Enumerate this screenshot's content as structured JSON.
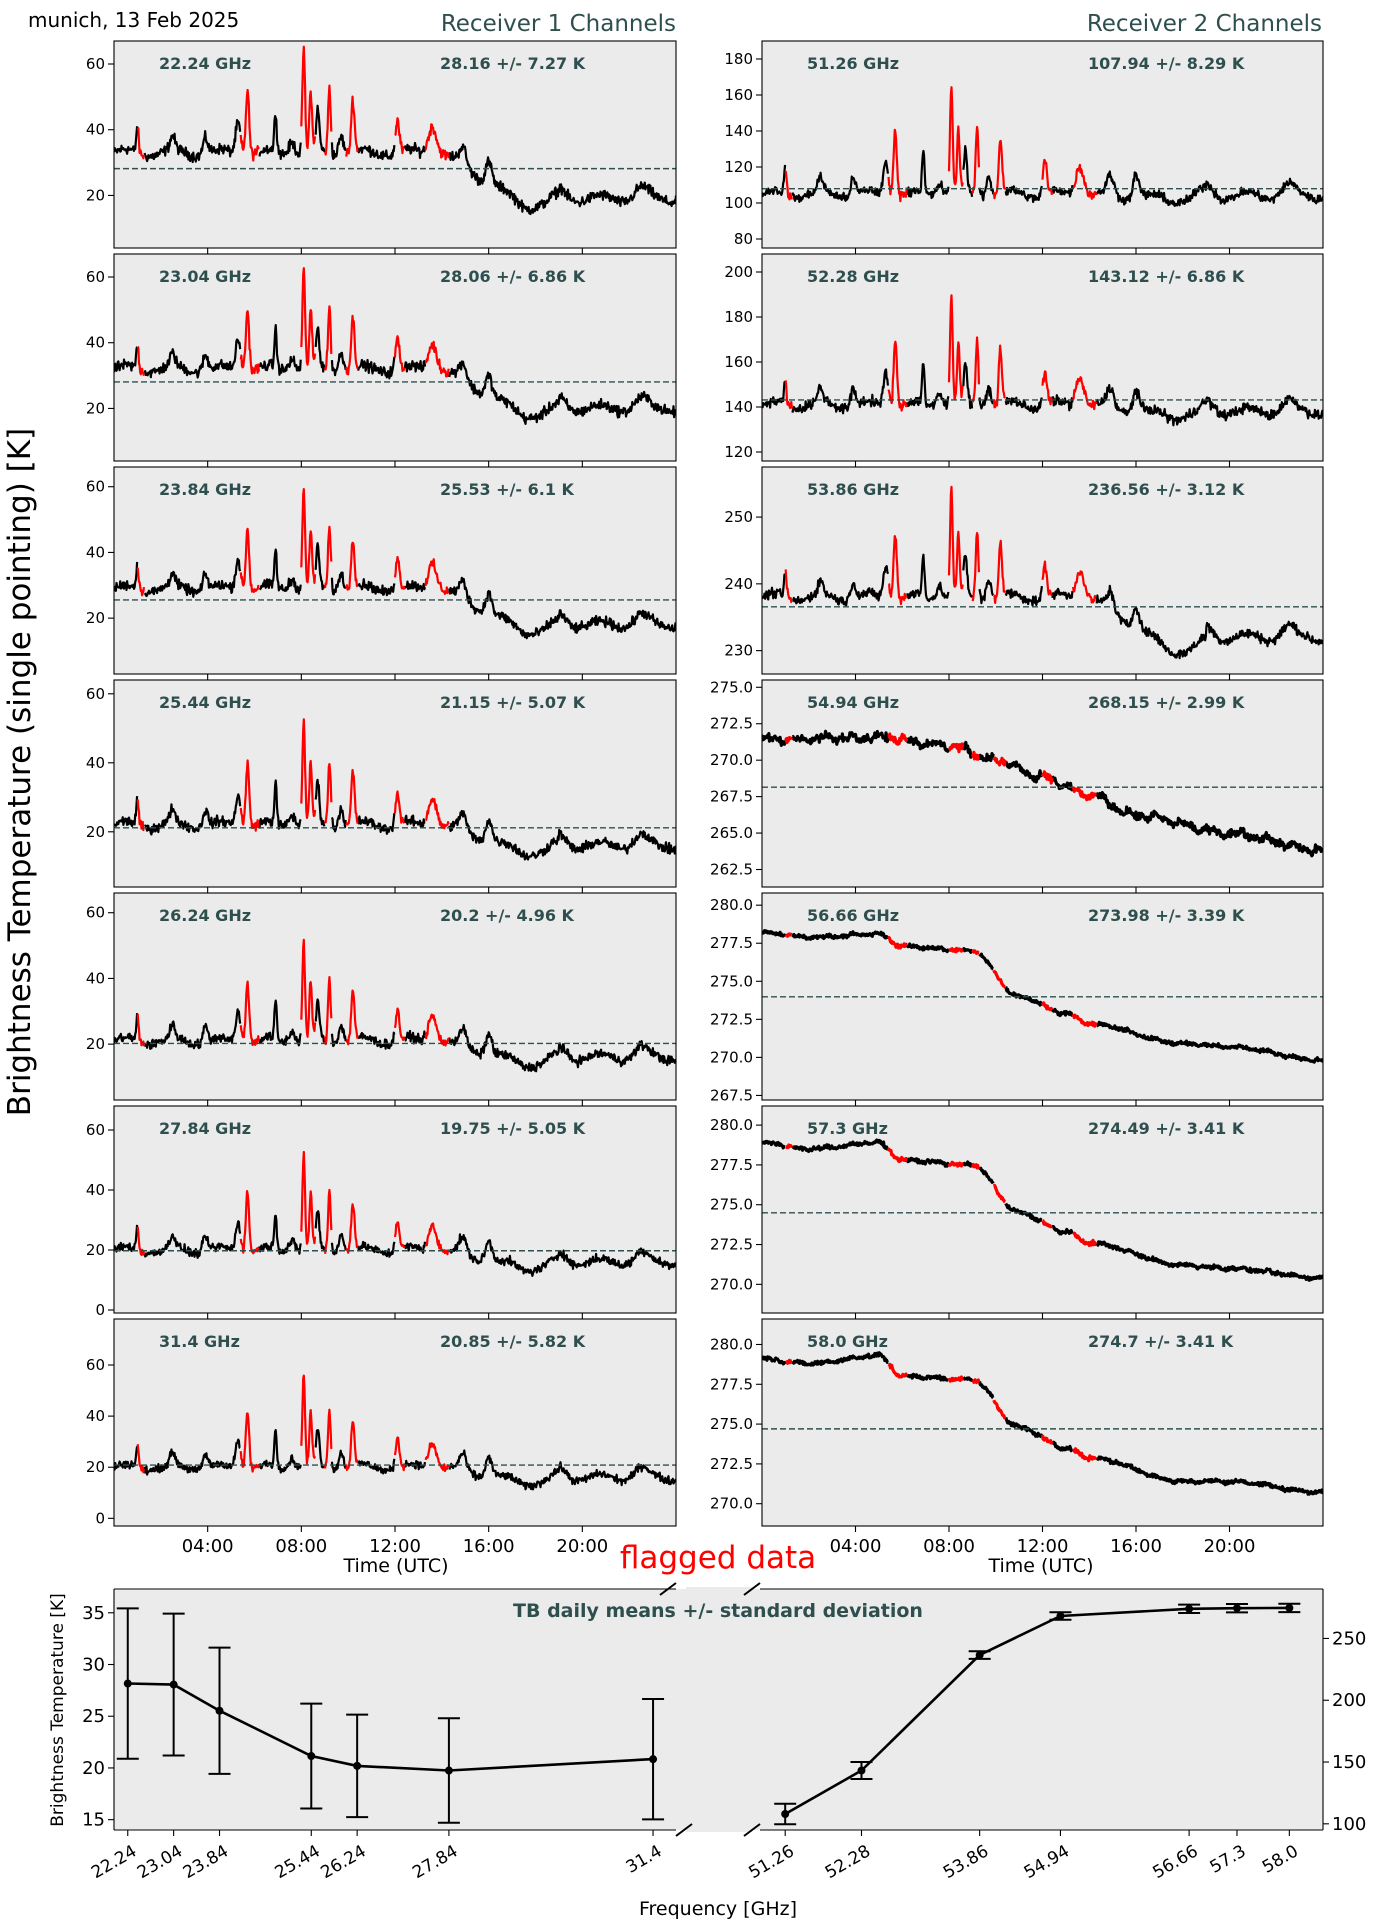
{
  "header": {
    "site_date": "munich, 13 Feb 2025",
    "receiver1_title": "Receiver 1 Channels",
    "receiver2_title": "Receiver 2 Channels"
  },
  "labels": {
    "ylabel_main": "Brightness Temperature (single pointing) [K]",
    "xlabel_time_left": "Time (UTC)",
    "xlabel_time_right": "Time (UTC)",
    "flagged": "flagged data",
    "means_title": "TB daily means +/- standard deviation",
    "summary_ylabel": "Brightness Temperature [K]",
    "summary_xlabel": "Frequency [GHz]"
  },
  "colors": {
    "panel_bg": "#ebebeb",
    "good": "#000000",
    "flagged": "#ff0000",
    "mean_line": "#2f4f4f",
    "text_accent": "#2f4f4f"
  },
  "time_ticks": [
    "04:00",
    "08:00",
    "12:00",
    "16:00",
    "20:00"
  ],
  "time_tick_hours": [
    4,
    8,
    12,
    16,
    20
  ],
  "flag_intervals_hours": [
    [
      1.0,
      1.3
    ],
    [
      5.4,
      6.2
    ],
    [
      8.0,
      8.6
    ],
    [
      9.0,
      9.3
    ],
    [
      9.9,
      10.4
    ],
    [
      12.0,
      12.4
    ],
    [
      13.3,
      14.3
    ]
  ],
  "chart_data": [
    {
      "type": "line",
      "panel": "r1-1",
      "freq_label": "22.24 GHz",
      "stat_label": "28.16 +/- 7.27 K",
      "mean": 28.16,
      "xlim": [
        0,
        24
      ],
      "ylim": [
        4,
        67
      ],
      "yticks": [
        20,
        40,
        60
      ],
      "ytick_labels": [
        "20",
        "40",
        "60"
      ],
      "profile": {
        "base": 33,
        "late": 19,
        "spike": 1.0,
        "noise": 1.6
      }
    },
    {
      "type": "line",
      "panel": "r1-2",
      "freq_label": "23.04 GHz",
      "stat_label": "28.06 +/- 6.86 K",
      "mean": 28.06,
      "xlim": [
        0,
        24
      ],
      "ylim": [
        4,
        67
      ],
      "yticks": [
        20,
        40,
        60
      ],
      "ytick_labels": [
        "20",
        "40",
        "60"
      ],
      "profile": {
        "base": 32,
        "late": 20,
        "spike": 0.95,
        "noise": 1.6
      }
    },
    {
      "type": "line",
      "panel": "r1-3",
      "freq_label": "23.84 GHz",
      "stat_label": "25.53 +/- 6.1 K",
      "mean": 25.53,
      "xlim": [
        0,
        24
      ],
      "ylim": [
        3,
        66
      ],
      "yticks": [
        20,
        40,
        60
      ],
      "ytick_labels": [
        "20",
        "40",
        "60"
      ],
      "profile": {
        "base": 29,
        "late": 18,
        "spike": 0.95,
        "noise": 1.5
      }
    },
    {
      "type": "line",
      "panel": "r1-4",
      "freq_label": "25.44 GHz",
      "stat_label": "21.15 +/- 5.07 K",
      "mean": 21.15,
      "xlim": [
        0,
        24
      ],
      "ylim": [
        4,
        64
      ],
      "yticks": [
        20,
        40,
        60
      ],
      "ytick_labels": [
        "20",
        "40",
        "60"
      ],
      "profile": {
        "base": 22,
        "late": 16,
        "spike": 0.95,
        "noise": 1.4
      }
    },
    {
      "type": "line",
      "panel": "r1-5",
      "freq_label": "26.24 GHz",
      "stat_label": "20.2 +/- 4.96 K",
      "mean": 20.2,
      "xlim": [
        0,
        24
      ],
      "ylim": [
        3,
        66
      ],
      "yticks": [
        20,
        40,
        60
      ],
      "ytick_labels": [
        "20",
        "40",
        "60"
      ],
      "profile": {
        "base": 21,
        "late": 16,
        "spike": 0.95,
        "noise": 1.4
      }
    },
    {
      "type": "line",
      "panel": "r1-6",
      "freq_label": "27.84 GHz",
      "stat_label": "19.75 +/- 5.05 K",
      "mean": 19.75,
      "xlim": [
        0,
        24
      ],
      "ylim": [
        -1,
        68
      ],
      "yticks": [
        0,
        20,
        40,
        60
      ],
      "ytick_labels": [
        "0",
        "20",
        "40",
        "60"
      ],
      "profile": {
        "base": 20,
        "late": 16,
        "spike": 1.0,
        "noise": 1.4
      }
    },
    {
      "type": "line",
      "panel": "r1-7",
      "freq_label": "31.4 GHz",
      "stat_label": "20.85 +/- 5.82 K",
      "mean": 20.85,
      "xlim": [
        0,
        24
      ],
      "ylim": [
        -3,
        78
      ],
      "yticks": [
        0,
        20,
        40,
        60
      ],
      "ytick_labels": [
        "0",
        "20",
        "40",
        "60"
      ],
      "profile": {
        "base": 20,
        "late": 16,
        "spike": 1.15,
        "noise": 1.5
      }
    },
    {
      "type": "line",
      "panel": "r2-1",
      "freq_label": "51.26 GHz",
      "stat_label": "107.94 +/- 8.29 K",
      "mean": 107.94,
      "xlim": [
        0,
        24
      ],
      "ylim": [
        75,
        190
      ],
      "yticks": [
        80,
        100,
        120,
        140,
        160,
        180
      ],
      "ytick_labels": [
        "80",
        "100",
        "120",
        "140",
        "160",
        "180"
      ],
      "profile": {
        "base": 105,
        "late": 104,
        "spike": 1.9,
        "noise": 2.5
      }
    },
    {
      "type": "line",
      "panel": "r2-2",
      "freq_label": "52.28 GHz",
      "stat_label": "143.12 +/- 6.86 K",
      "mean": 143.12,
      "xlim": [
        0,
        24
      ],
      "ylim": [
        116,
        208
      ],
      "yticks": [
        120,
        140,
        160,
        180,
        200
      ],
      "ytick_labels": [
        "120",
        "140",
        "160",
        "180",
        "200"
      ],
      "profile": {
        "base": 141,
        "late": 138,
        "spike": 1.5,
        "noise": 2.2
      }
    },
    {
      "type": "line",
      "panel": "r2-3",
      "freq_label": "53.86 GHz",
      "stat_label": "236.56 +/- 3.12 K",
      "mean": 236.56,
      "xlim": [
        0,
        24
      ],
      "ylim": [
        226.5,
        257.5
      ],
      "yticks": [
        230,
        240,
        250
      ],
      "ytick_labels": [
        "230",
        "240",
        "250"
      ],
      "profile": {
        "base": 238,
        "late": 232,
        "spike": 0.5,
        "noise": 0.7
      }
    },
    {
      "type": "line",
      "panel": "r2-4",
      "freq_label": "54.94 GHz",
      "stat_label": "268.15 +/- 2.99 K",
      "mean": 268.15,
      "xlim": [
        0,
        24
      ],
      "ylim": [
        261.3,
        275.5
      ],
      "yticks": [
        262.5,
        265,
        267.5,
        270,
        272.5,
        275
      ],
      "ytick_labels": [
        "262.5",
        "265.0",
        "267.5",
        "270.0",
        "272.5",
        "275.0"
      ],
      "profile": {
        "mode": "smooth",
        "p": [
          [
            0,
            271.4
          ],
          [
            5,
            271.6
          ],
          [
            8,
            271.0
          ],
          [
            10,
            270.0
          ],
          [
            12,
            268.8
          ],
          [
            14,
            267.6
          ],
          [
            16,
            266.2
          ],
          [
            20,
            265.0
          ],
          [
            24,
            263.8
          ]
        ],
        "noise": 0.25,
        "bump": 0.15
      }
    },
    {
      "type": "line",
      "panel": "r2-5",
      "freq_label": "56.66 GHz",
      "stat_label": "273.98 +/- 3.39 K",
      "mean": 273.98,
      "xlim": [
        0,
        24
      ],
      "ylim": [
        267.2,
        280.8
      ],
      "yticks": [
        267.5,
        270,
        272.5,
        275,
        277.5,
        280
      ],
      "ytick_labels": [
        "267.5",
        "270.0",
        "272.5",
        "275.0",
        "277.5",
        "280.0"
      ],
      "profile": {
        "mode": "smooth",
        "p": [
          [
            0,
            278.2
          ],
          [
            2,
            277.9
          ],
          [
            5,
            278.1
          ],
          [
            6,
            277.3
          ],
          [
            9,
            277.0
          ],
          [
            11,
            274.0
          ],
          [
            13,
            272.9
          ],
          [
            14,
            272.2
          ],
          [
            18,
            270.9
          ],
          [
            20,
            270.7
          ],
          [
            24,
            269.8
          ]
        ],
        "noise": 0.12,
        "bump": 0.05
      }
    },
    {
      "type": "line",
      "panel": "r2-6",
      "freq_label": "57.3 GHz",
      "stat_label": "274.49 +/- 3.41 K",
      "mean": 274.49,
      "xlim": [
        0,
        24
      ],
      "ylim": [
        268.2,
        281.2
      ],
      "yticks": [
        270,
        272.5,
        275,
        277.5,
        280
      ],
      "ytick_labels": [
        "270.0",
        "272.5",
        "275.0",
        "277.5",
        "280.0"
      ],
      "profile": {
        "mode": "smooth",
        "p": [
          [
            0,
            278.9
          ],
          [
            2,
            278.5
          ],
          [
            5,
            278.9
          ],
          [
            6,
            277.8
          ],
          [
            9,
            277.5
          ],
          [
            11,
            274.5
          ],
          [
            13,
            273.3
          ],
          [
            14,
            272.6
          ],
          [
            18,
            271.2
          ],
          [
            20,
            271.0
          ],
          [
            24,
            270.4
          ]
        ],
        "noise": 0.12,
        "bump": 0.05
      }
    },
    {
      "type": "line",
      "panel": "r2-7",
      "freq_label": "58.0 GHz",
      "stat_label": "274.7 +/- 3.41 K",
      "mean": 274.7,
      "xlim": [
        0,
        24
      ],
      "ylim": [
        268.6,
        281.6
      ],
      "yticks": [
        270,
        272.5,
        275,
        277.5,
        280
      ],
      "ytick_labels": [
        "270.0",
        "272.5",
        "275.0",
        "277.5",
        "280.0"
      ],
      "profile": {
        "mode": "smooth",
        "p": [
          [
            0,
            279.1
          ],
          [
            2,
            278.8
          ],
          [
            5,
            279.3
          ],
          [
            6,
            278.0
          ],
          [
            9,
            277.8
          ],
          [
            11,
            274.8
          ],
          [
            13,
            273.5
          ],
          [
            14,
            272.9
          ],
          [
            18,
            271.4
          ],
          [
            20,
            271.4
          ],
          [
            24,
            270.7
          ]
        ],
        "noise": 0.12,
        "bump": 0.05
      }
    },
    {
      "type": "line",
      "panel": "summary",
      "title": "TB daily means +/- standard deviation",
      "xlabel": "Frequency [GHz]",
      "ylabel": "Brightness Temperature [K]",
      "left": {
        "x": [
          22.24,
          23.04,
          23.84,
          25.44,
          26.24,
          27.84,
          31.4
        ],
        "xtick_labels": [
          "22.24",
          "23.04",
          "23.84",
          "25.44",
          "26.24",
          "27.84",
          "31.4"
        ],
        "y": [
          28.16,
          28.06,
          25.53,
          21.15,
          20.2,
          19.75,
          20.85
        ],
        "err": [
          7.27,
          6.86,
          6.1,
          5.07,
          4.96,
          5.05,
          5.82
        ],
        "xlim": [
          22.0,
          31.8
        ],
        "ylim": [
          14.0,
          37.3
        ],
        "yticks": [
          15,
          20,
          25,
          30,
          35
        ],
        "ytick_labels": [
          "15",
          "20",
          "25",
          "30",
          "35"
        ]
      },
      "right": {
        "x": [
          51.26,
          52.28,
          53.86,
          54.94,
          56.66,
          57.3,
          58.0
        ],
        "xtick_labels": [
          "51.26",
          "52.28",
          "53.86",
          "54.94",
          "56.66",
          "57.3",
          "58.0"
        ],
        "y": [
          107.94,
          143.12,
          236.56,
          268.15,
          273.98,
          274.49,
          274.7
        ],
        "err": [
          8.29,
          6.86,
          3.12,
          2.99,
          3.39,
          3.41,
          3.41
        ],
        "xlim": [
          50.95,
          58.45
        ],
        "ylim": [
          95,
          290
        ],
        "yticks": [
          100,
          150,
          200,
          250
        ],
        "ytick_labels": [
          "100",
          "150",
          "200",
          "250"
        ]
      }
    }
  ]
}
